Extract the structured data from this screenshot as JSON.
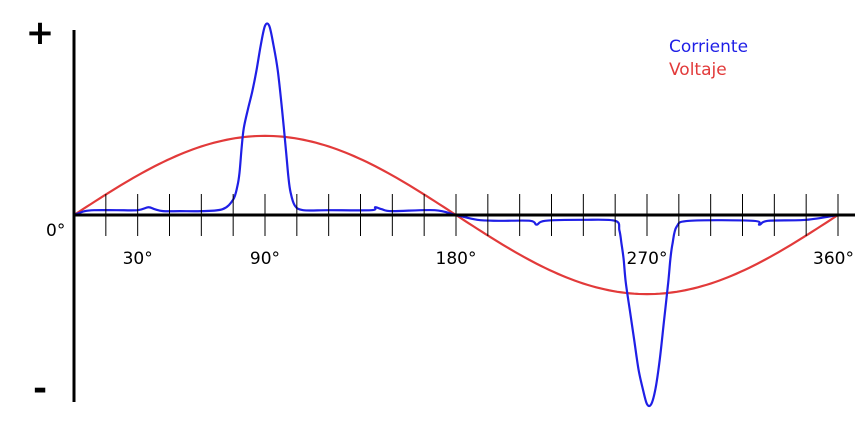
{
  "chart_data": {
    "type": "line",
    "title": "",
    "xlabel": "",
    "ylabel": "",
    "y_signs": {
      "positive": "+",
      "negative": "-"
    },
    "x_range": [
      0,
      360
    ],
    "y_range": [
      -1.05,
      1.05
    ],
    "x_tick_values": [
      0,
      15,
      30,
      45,
      60,
      75,
      90,
      105,
      120,
      135,
      150,
      165,
      180,
      195,
      210,
      225,
      240,
      255,
      270,
      285,
      300,
      315,
      330,
      345,
      360
    ],
    "x_tick_labels": [
      {
        "x": 0,
        "label": "0°"
      },
      {
        "x": 30,
        "label": "30°"
      },
      {
        "x": 90,
        "label": "90°"
      },
      {
        "x": 180,
        "label": "180°"
      },
      {
        "x": 270,
        "label": "270°"
      },
      {
        "x": 360,
        "label": "360°"
      }
    ],
    "legend_position": "top-right",
    "series": [
      {
        "name": "Corriente",
        "color": "#1f1fe6",
        "x": [
          0,
          5,
          10,
          20,
          30,
          35,
          38,
          42,
          50,
          60,
          70,
          75,
          77,
          78,
          79,
          80,
          82,
          84,
          86,
          88,
          90,
          92,
          94,
          96,
          98,
          100,
          101,
          102,
          104,
          108,
          120,
          140,
          142,
          145,
          150,
          170,
          180,
          190,
          200,
          215,
          218,
          222,
          240,
          255,
          257,
          258,
          259,
          260,
          262,
          264,
          266,
          268,
          270,
          272,
          274,
          276,
          278,
          280,
          281,
          282,
          284,
          290,
          320,
          323,
          327,
          345,
          360
        ],
        "values": [
          0.0,
          0.02,
          0.025,
          0.025,
          0.025,
          0.04,
          0.03,
          0.02,
          0.02,
          0.02,
          0.03,
          0.08,
          0.15,
          0.22,
          0.35,
          0.45,
          0.55,
          0.64,
          0.75,
          0.88,
          0.98,
          0.98,
          0.88,
          0.75,
          0.55,
          0.32,
          0.2,
          0.12,
          0.05,
          0.025,
          0.025,
          0.025,
          0.04,
          0.03,
          0.02,
          0.025,
          0.0,
          -0.025,
          -0.03,
          -0.03,
          -0.05,
          -0.03,
          -0.025,
          -0.03,
          -0.08,
          -0.15,
          -0.23,
          -0.35,
          -0.5,
          -0.65,
          -0.8,
          -0.9,
          -0.98,
          -0.98,
          -0.9,
          -0.75,
          -0.55,
          -0.35,
          -0.23,
          -0.15,
          -0.06,
          -0.03,
          -0.03,
          -0.05,
          -0.03,
          -0.025,
          0.0
        ]
      },
      {
        "name": "Voltaje",
        "color": "#e23a3a",
        "function": "sine",
        "amplitude": 0.41,
        "x_start": 0,
        "x_end": 360
      }
    ]
  }
}
